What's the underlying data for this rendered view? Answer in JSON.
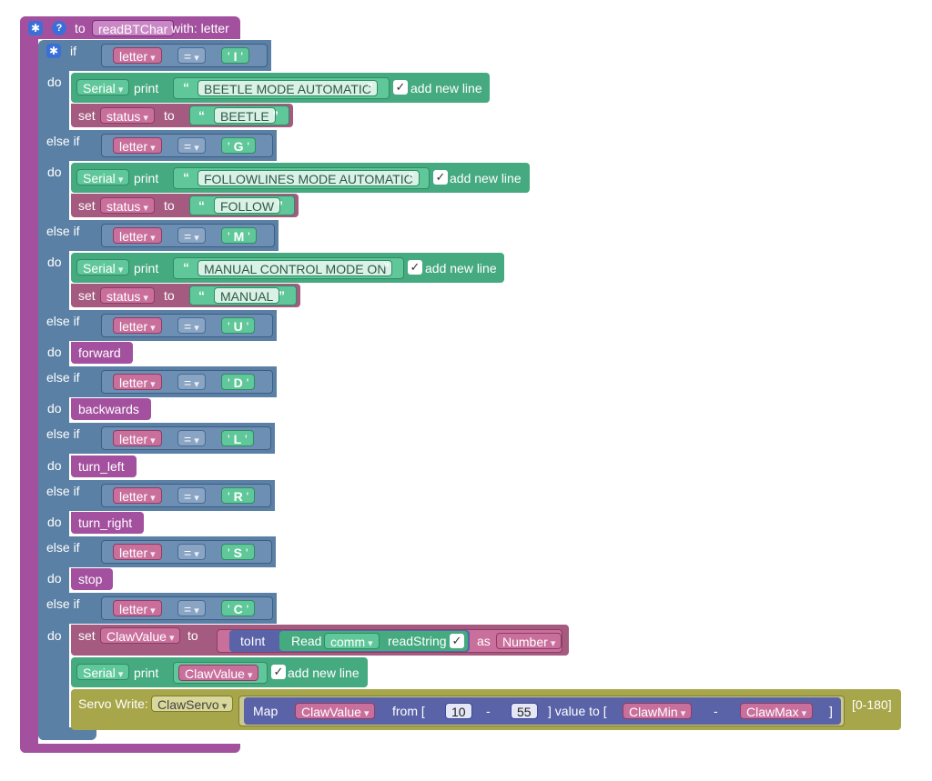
{
  "proc": {
    "to": "to",
    "name": "readBTChar",
    "with": "with: letter"
  },
  "kw": {
    "if": "if",
    "else_if": "else if",
    "do": "do",
    "set": "set",
    "to": "to",
    "print": "print",
    "add_new_line": "add new line",
    "eq": "=",
    "serial": "Serial",
    "letter": "letter",
    "status": "status",
    "open_quote": "“",
    "close_quote": "”",
    "q": "'"
  },
  "branches": [
    {
      "char": "I"
    },
    {
      "char": "G"
    },
    {
      "char": "M"
    },
    {
      "char": "U"
    },
    {
      "char": "D"
    },
    {
      "char": "L"
    },
    {
      "char": "R"
    },
    {
      "char": "S"
    },
    {
      "char": "C"
    }
  ],
  "prints": [
    "BEETLE MODE AUTOMATIC",
    "FOLLOWLINES MODE AUTOMATIC",
    "MANUAL CONTROL MODE ON"
  ],
  "statuses": [
    "BEETLE",
    "FOLLOW",
    "MANUAL"
  ],
  "calls": [
    "forward",
    "backwards",
    "turn_left",
    "turn_right",
    "stop"
  ],
  "claw": {
    "var": "ClawValue",
    "toInt": "toInt",
    "read": "Read",
    "comm": "comm",
    "readString": "readString",
    "as": "as",
    "number": "Number",
    "servo_write": "Servo Write:",
    "servo": "ClawServo",
    "map": "Map",
    "from": "from [",
    "n1": "10",
    "minus": "-",
    "n2": "55",
    "value_to": "] value to [",
    "min": "ClawMin",
    "max": "ClawMax",
    "close": "]",
    "range": "[0-180]"
  },
  "colors": {
    "procedure": "#a3509f",
    "logic": "#5b80a5",
    "serial": "#45aa80",
    "variable": "#a55b80",
    "servo": "#a8a64a",
    "math": "#5a63a8"
  }
}
